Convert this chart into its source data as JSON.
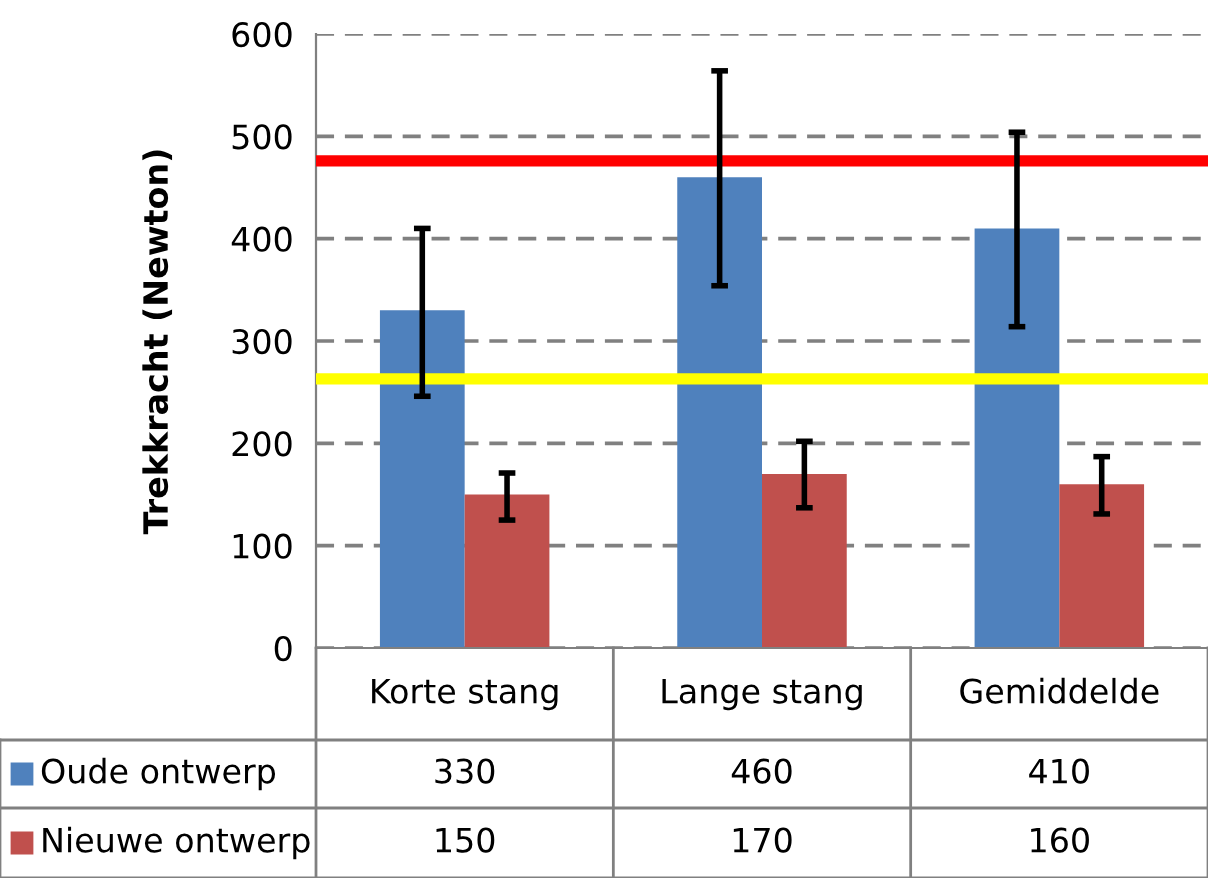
{
  "chart_data": {
    "type": "bar",
    "ylabel": "Trekkracht (Newton)",
    "categories": [
      "Korte stang",
      "Lange stang",
      "Gemiddelde"
    ],
    "series": [
      {
        "name": "Oude ontwerp",
        "color": "#4f81bd",
        "values": [
          330,
          460,
          410
        ],
        "errors": [
          [
            246,
            410
          ],
          [
            354,
            564
          ],
          [
            314,
            504
          ]
        ]
      },
      {
        "name": "Nieuwe ontwerp",
        "color": "#c0504d",
        "values": [
          150,
          170,
          160
        ],
        "errors": [
          [
            125,
            171
          ],
          [
            137,
            202
          ],
          [
            131,
            187
          ]
        ]
      }
    ],
    "ylim": [
      0,
      600
    ],
    "yticks": [
      0,
      100,
      200,
      300,
      400,
      500,
      600
    ],
    "grid": "y",
    "data_labels": true,
    "legend": "bottom left",
    "ref_lines": [
      {
        "axis": "y",
        "value": 476,
        "color": "#ff0000"
      },
      {
        "axis": "y",
        "value": 263,
        "color": "#ffff00"
      }
    ]
  }
}
